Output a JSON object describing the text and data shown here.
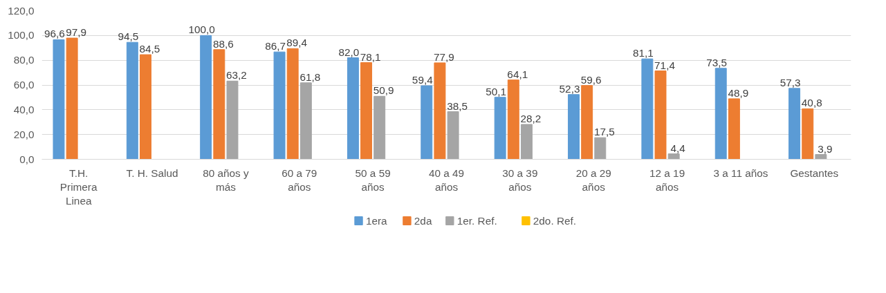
{
  "chart_data": {
    "type": "bar",
    "categories": [
      "T.H. Primera Linea",
      "T. H. Salud",
      "80 años y más",
      "60 a 79 años",
      "50 a 59 años",
      "40 a 49 años",
      "30 a 39 años",
      "20 a 29 años",
      "12 a 19 años",
      "3 a 11 años",
      "Gestantes"
    ],
    "series": [
      {
        "name": "1era",
        "color": "#5b9bd5",
        "values": [
          96.6,
          94.5,
          100.0,
          86.7,
          82.0,
          59.4,
          50.1,
          52.3,
          81.1,
          73.5,
          57.3
        ],
        "value_labels": [
          "96,6",
          "94,5",
          "100,0",
          "86,7",
          "82,0",
          "59,4",
          "50,1",
          "52,3",
          "81,1",
          "73,5",
          "57,3"
        ]
      },
      {
        "name": "2da",
        "color": "#ed7d31",
        "values": [
          97.9,
          84.5,
          88.6,
          89.4,
          78.1,
          77.9,
          64.1,
          59.6,
          71.4,
          48.9,
          40.8
        ],
        "value_labels": [
          "97,9",
          "84,5",
          "88,6",
          "89,4",
          "78,1",
          "77,9",
          "64,1",
          "59,6",
          "71,4",
          "48,9",
          "40,8"
        ]
      },
      {
        "name": "1er. Ref.",
        "color": "#a5a5a5",
        "values": [
          null,
          null,
          63.2,
          61.8,
          50.9,
          38.5,
          28.2,
          17.5,
          4.4,
          null,
          3.9
        ],
        "value_labels": [
          null,
          null,
          "63,2",
          "61,8",
          "50,9",
          "38,5",
          "28,2",
          "17,5",
          "4,4",
          null,
          "3,9"
        ]
      },
      {
        "name": "2do. Ref.",
        "color": "#ffc000",
        "values": [
          null,
          null,
          null,
          null,
          null,
          null,
          null,
          null,
          null,
          null,
          null
        ]
      }
    ],
    "ylim": [
      0,
      120
    ],
    "yticks": [
      {
        "value": 0,
        "label": "0,0"
      },
      {
        "value": 20,
        "label": "20,0"
      },
      {
        "value": 40,
        "label": "40,0"
      },
      {
        "value": 60,
        "label": "60,0"
      },
      {
        "value": 80,
        "label": "80,0"
      },
      {
        "value": 100,
        "label": "100,0"
      },
      {
        "value": 120,
        "label": "120,0"
      }
    ],
    "grid": "y",
    "legend": "bottom"
  }
}
